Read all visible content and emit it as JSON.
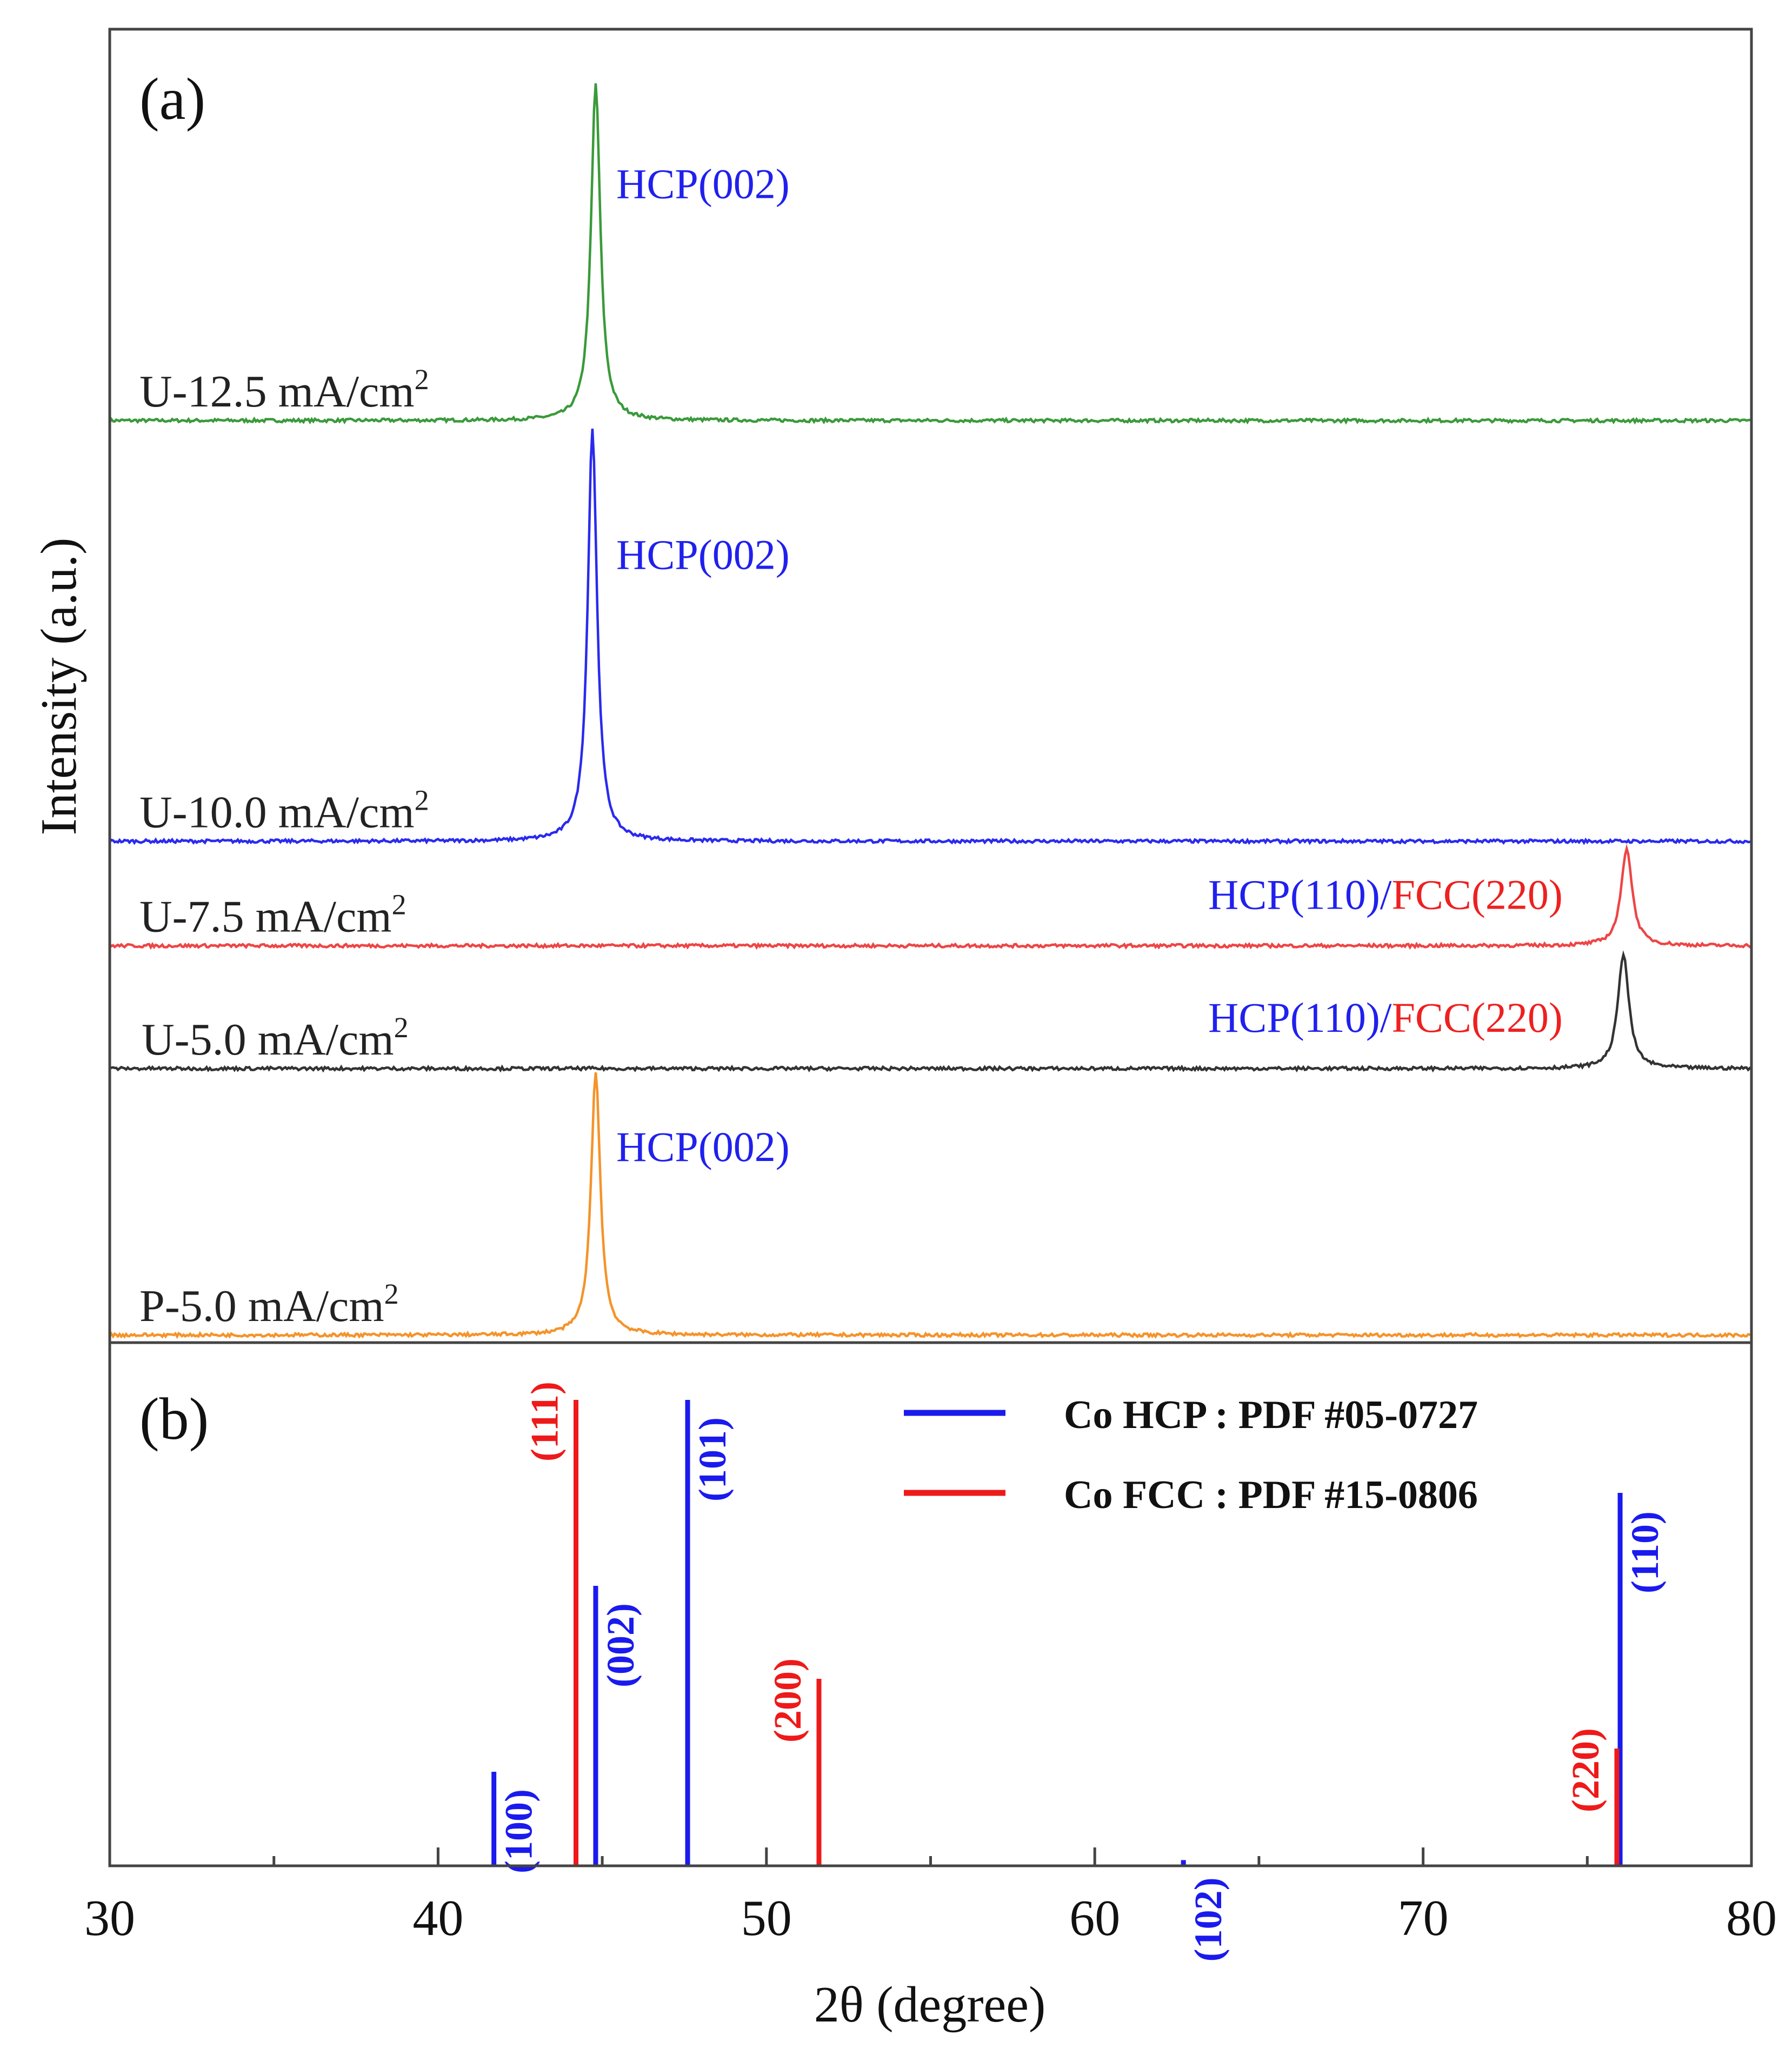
{
  "chart_data": [
    {
      "panel": "a",
      "panel_label": "(a)",
      "type": "line",
      "title": "",
      "xlabel": "2θ (degree)",
      "ylabel": "Intensity (a.u.)",
      "xlim": [
        30,
        80
      ],
      "grid": false,
      "series": [
        {
          "name": "U-12.5 mA/cm²",
          "label_main": "U-12.5  mA/cm",
          "label_sup": "2",
          "color": "#3a9a3a",
          "offset": 0.7,
          "peak_x": 44.8,
          "peak_height": 0.258,
          "peak_width": 0.17,
          "annotation": {
            "hcp": "HCP(002)",
            "fcc": ""
          }
        },
        {
          "name": "U-10.0 mA/cm²",
          "label_main": "U-10.0  mA/cm",
          "label_sup": "2",
          "color": "#2a2aee",
          "offset": 0.378,
          "peak_x": 44.7,
          "peak_height": 0.316,
          "peak_width": 0.17,
          "annotation": {
            "hcp": "HCP(002)",
            "fcc": ""
          }
        },
        {
          "name": "U-7.5 mA/cm²",
          "label_main": "U-7.5   mA/cm",
          "label_sup": "2",
          "color": "#ee4545",
          "offset": 0.298,
          "peak_x": 76.2,
          "peak_height": 0.075,
          "peak_width": 0.2,
          "annotation": {
            "hcp": "HCP(110)/",
            "fcc": "FCC(220)"
          }
        },
        {
          "name": "U-5.0 mA/cm²",
          "label_main": "U-5.0   mA/cm",
          "label_sup": "2",
          "color": "#333333",
          "offset": 0.204,
          "peak_x": 76.1,
          "peak_height": 0.088,
          "peak_width": 0.2,
          "annotation": {
            "hcp": "HCP(110)/",
            "fcc": "FCC(220)"
          }
        },
        {
          "name": "P-5.0 mA/cm²",
          "label_main": "P-5.0   mA/cm",
          "label_sup": "2",
          "color": "#f5932a",
          "offset": 0.0,
          "peak_x": 44.8,
          "peak_height": 0.202,
          "peak_width": 0.17,
          "annotation": {
            "hcp": "HCP(002)",
            "fcc": ""
          }
        }
      ]
    },
    {
      "panel": "b",
      "panel_label": "(b)",
      "type": "bar",
      "title": "",
      "xlabel": "2θ (degree)",
      "ylabel": "Intensity (a.u.)",
      "xlim": [
        30,
        80
      ],
      "ylim": [
        0,
        100
      ],
      "xticks": [
        30,
        40,
        50,
        60,
        70,
        80
      ],
      "legend_position": "top-right",
      "legend": [
        {
          "name": "Co HCP : PDF #05-0727",
          "color": "#1a1aee"
        },
        {
          "name": "Co FCC : PDF #15-0806",
          "color": "#ee1a1a"
        }
      ],
      "series": [
        {
          "name": "Co HCP",
          "color": "#1a1aee",
          "lines": [
            {
              "x": 41.7,
              "value": 20,
              "label": "(100)"
            },
            {
              "x": 44.8,
              "value": 60,
              "label": "(002)"
            },
            {
              "x": 47.6,
              "value": 100,
              "label": "(101)"
            },
            {
              "x": 62.7,
              "value": 1,
              "label": "(102)"
            },
            {
              "x": 76.0,
              "value": 80,
              "label": "(110)"
            }
          ]
        },
        {
          "name": "Co FCC",
          "color": "#ee1a1a",
          "lines": [
            {
              "x": 44.2,
              "value": 100,
              "label": "(111)"
            },
            {
              "x": 51.6,
              "value": 40,
              "label": "(200)"
            },
            {
              "x": 75.9,
              "value": 25,
              "label": "(220)"
            }
          ]
        }
      ]
    }
  ]
}
